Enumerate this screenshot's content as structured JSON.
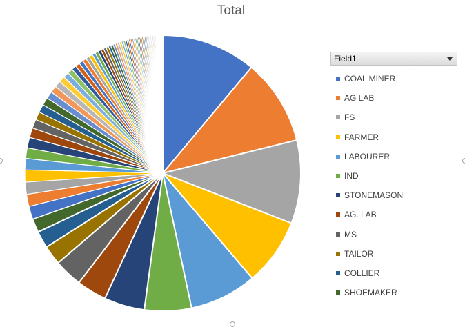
{
  "chart_data": {
    "type": "pie",
    "title": "Total",
    "legend": {
      "field": "Field1",
      "position": "right"
    },
    "categories": [
      "COAL MINER",
      "AG LAB",
      "FS",
      "FARMER",
      "LABOURER",
      "IND",
      "STONEMASON",
      "AG. LAB",
      "MS",
      "TAILOR",
      "COLLIER",
      "SHOEMAKER"
    ],
    "values": [
      11.7,
      10.6,
      10.3,
      8.3,
      8.3,
      5.8,
      5.0,
      3.7,
      3.5,
      2.4,
      2.1,
      1.7
    ],
    "colors": [
      "#4472c4",
      "#ed7d31",
      "#a5a5a5",
      "#ffc000",
      "#5b9bd5",
      "#70ad47",
      "#264478",
      "#9e480e",
      "#636363",
      "#997300",
      "#255e91",
      "#43682b"
    ],
    "other_slices": [
      1.6,
      1.5,
      1.5,
      1.5,
      1.4,
      1.3,
      1.3,
      1.2,
      1.1,
      1.0,
      1.0,
      0.95,
      0.9,
      0.85,
      0.8,
      0.75,
      0.7,
      0.65,
      0.6,
      0.55,
      0.5,
      0.5,
      0.45,
      0.45,
      0.4,
      0.4,
      0.38,
      0.36,
      0.34,
      0.32,
      0.3,
      0.3,
      0.28,
      0.28,
      0.26,
      0.26,
      0.24,
      0.24,
      0.22,
      0.22,
      0.2,
      0.2,
      0.2,
      0.18,
      0.18,
      0.18,
      0.17,
      0.17,
      0.16,
      0.16,
      0.15,
      0.15,
      0.15,
      0.14,
      0.14,
      0.14,
      0.13,
      0.13,
      0.12,
      0.12,
      0.12,
      0.11,
      0.11,
      0.1,
      0.1,
      0.1,
      0.1,
      0.1,
      0.1,
      0.1
    ],
    "palette": [
      "#4472c4",
      "#ed7d31",
      "#a5a5a5",
      "#ffc000",
      "#5b9bd5",
      "#70ad47",
      "#264478",
      "#9e480e",
      "#636363",
      "#997300",
      "#255e91",
      "#43682b",
      "#698ed0",
      "#f1975a",
      "#b7b7b7",
      "#ffcd33",
      "#7cafdd",
      "#8cc168",
      "#335aa1",
      "#d26012"
    ],
    "start_angle_deg": 0,
    "direction": "clockwise"
  }
}
